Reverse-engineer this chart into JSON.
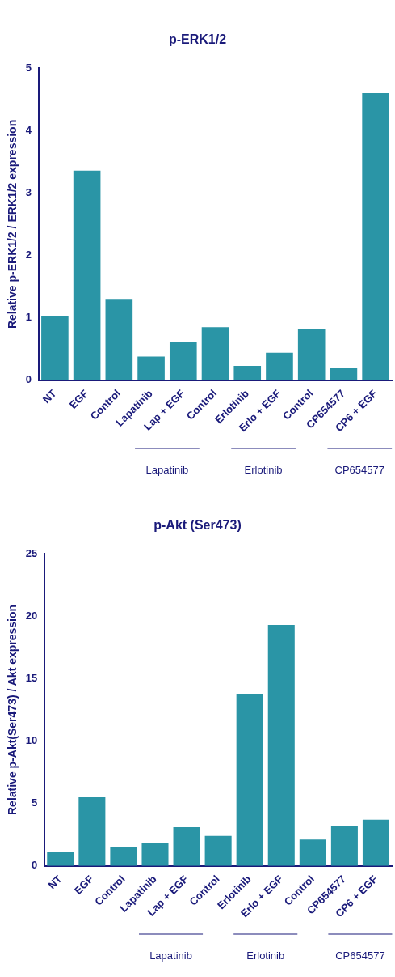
{
  "chart_data": [
    {
      "type": "bar",
      "title": "p-ERK1/2",
      "ylabel": "Relative p-ERK1/2 / ERK1/2 expression",
      "categories": [
        "NT",
        "EGF",
        "Control",
        "Lapatinib",
        "Lap + EGF",
        "Control",
        "Erlotinib",
        "Erlo + EGF",
        "Control",
        "CP654577",
        "CP6 + EGF"
      ],
      "values": [
        1.03,
        3.36,
        1.29,
        0.38,
        0.61,
        0.85,
        0.23,
        0.44,
        0.82,
        0.19,
        4.6
      ],
      "color": "#2a95a6",
      "ylim": [
        0,
        5
      ],
      "yticks": [
        0,
        1,
        2,
        3,
        4,
        5
      ],
      "grid": false,
      "legend": false,
      "annotations": [
        "Lapatinib",
        "Erlotinib",
        "CP654577"
      ]
    },
    {
      "type": "bar",
      "title": "p-Akt (Ser473)",
      "ylabel": "Relative p-Akt(Ser473) / Akt expression",
      "categories": [
        "NT",
        "EGF",
        "Control",
        "Lapatinib",
        "Lap + EGF",
        "Control",
        "Erlotinib",
        "Erlo + EGF",
        "Control",
        "CP654577",
        "CP6 + EGF"
      ],
      "values": [
        1.1,
        5.5,
        1.5,
        1.8,
        3.1,
        2.4,
        13.8,
        19.3,
        2.1,
        3.2,
        3.7
      ],
      "color": "#2a95a6",
      "ylim": [
        0,
        25
      ],
      "yticks": [
        0,
        5,
        10,
        15,
        20,
        25
      ],
      "grid": false,
      "legend": false,
      "annotations": [
        "Lapatinib",
        "Erlotinib",
        "CP654577"
      ]
    }
  ]
}
